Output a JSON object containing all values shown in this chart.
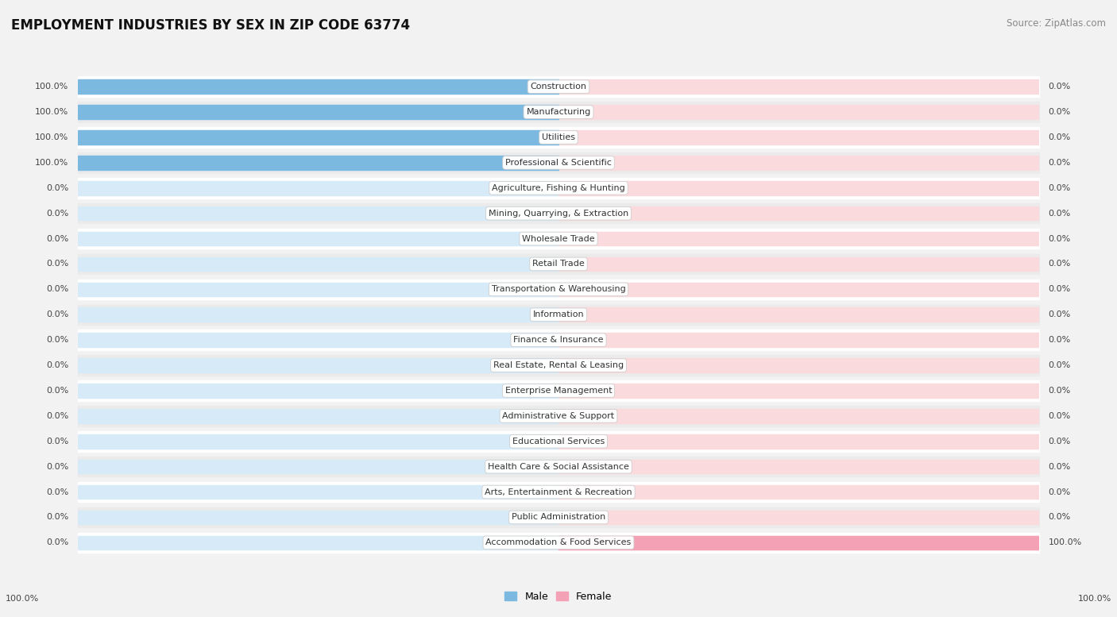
{
  "title": "EMPLOYMENT INDUSTRIES BY SEX IN ZIP CODE 63774",
  "source": "Source: ZipAtlas.com",
  "industries": [
    "Construction",
    "Manufacturing",
    "Utilities",
    "Professional & Scientific",
    "Agriculture, Fishing & Hunting",
    "Mining, Quarrying, & Extraction",
    "Wholesale Trade",
    "Retail Trade",
    "Transportation & Warehousing",
    "Information",
    "Finance & Insurance",
    "Real Estate, Rental & Leasing",
    "Enterprise Management",
    "Administrative & Support",
    "Educational Services",
    "Health Care & Social Assistance",
    "Arts, Entertainment & Recreation",
    "Public Administration",
    "Accommodation & Food Services"
  ],
  "male": [
    100,
    100,
    100,
    100,
    0,
    0,
    0,
    0,
    0,
    0,
    0,
    0,
    0,
    0,
    0,
    0,
    0,
    0,
    0
  ],
  "female": [
    0,
    0,
    0,
    0,
    0,
    0,
    0,
    0,
    0,
    0,
    0,
    0,
    0,
    0,
    0,
    0,
    0,
    0,
    100
  ],
  "male_color": "#7cb9e0",
  "female_color": "#f4a0b5",
  "male_bg_color": "#d6eaf8",
  "female_bg_color": "#fadadd",
  "male_label": "Male",
  "female_label": "Female",
  "bg_color": "#f2f2f2",
  "row_even_color": "#ffffff",
  "row_odd_color": "#ebebeb",
  "title_fontsize": 12,
  "source_fontsize": 8.5,
  "industry_fontsize": 8,
  "pct_fontsize": 8,
  "legend_fontsize": 9
}
